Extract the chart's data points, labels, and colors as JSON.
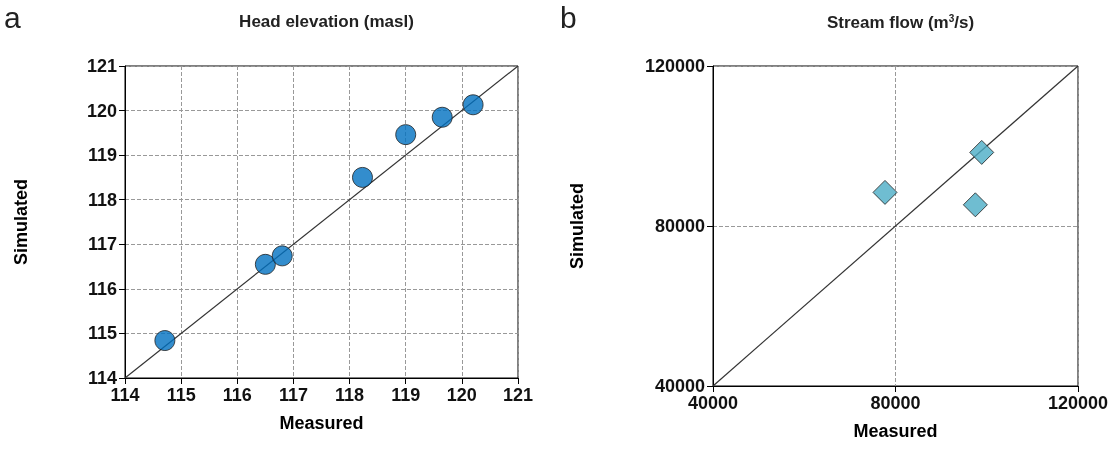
{
  "chart_data": [
    {
      "type": "scatter",
      "title": "Head elevation (masl)",
      "xlabel": "Measured",
      "ylabel": "Simulated",
      "annotations": [
        "a"
      ],
      "xlim": [
        114,
        121
      ],
      "ylim": [
        114,
        121
      ],
      "xticks": [
        114,
        115,
        116,
        117,
        118,
        119,
        120,
        121
      ],
      "yticks": [
        114,
        115,
        116,
        117,
        118,
        119,
        120,
        121
      ],
      "grid": true,
      "series": [
        {
          "marker": "circle",
          "color": "#0070c0",
          "x": [
            114.71,
            116.5,
            116.8,
            118.23,
            119.0,
            119.65,
            120.2
          ],
          "values": [
            114.84,
            116.55,
            116.74,
            118.5,
            119.46,
            119.85,
            120.13
          ]
        },
        {
          "type": "line",
          "marker": "none",
          "color": "#333333",
          "x": [
            114,
            121
          ],
          "values": [
            114,
            121
          ]
        }
      ]
    },
    {
      "type": "scatter",
      "title": "Stream flow (m$^{3}$/s)",
      "xlabel": "Measured",
      "ylabel": "Simulated",
      "annotations": [
        "b"
      ],
      "xlim": [
        40000,
        120000
      ],
      "ylim": [
        40000,
        120000
      ],
      "xticks": [
        40000,
        80000,
        120000
      ],
      "yticks": [
        40000,
        80000,
        120000
      ],
      "grid": true,
      "series": [
        {
          "marker": "diamond",
          "color": "#4bacc6",
          "x": [
            77700,
            98900,
            97500
          ],
          "values": [
            88400,
            98400,
            85300
          ]
        },
        {
          "type": "line",
          "marker": "none",
          "color": "#333333",
          "x": [
            40000,
            120000
          ],
          "values": [
            40000,
            120000
          ]
        }
      ]
    }
  ]
}
